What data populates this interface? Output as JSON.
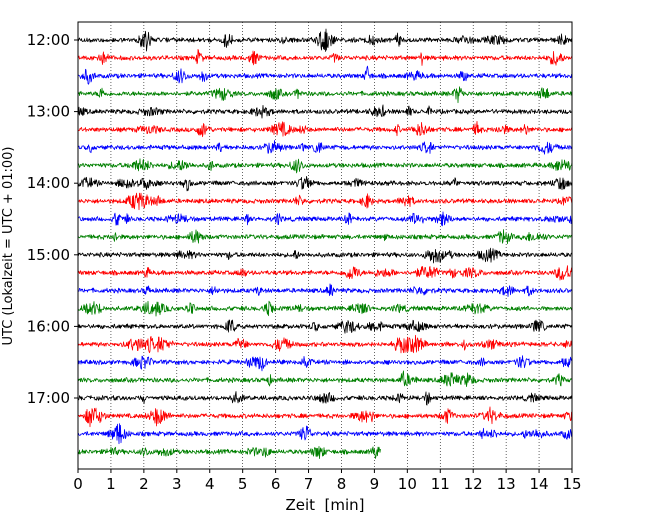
{
  "chart_data": {
    "type": "line",
    "title": "",
    "xlabel": "Zeit  [min]",
    "ylabel": "UTC (Lokalzeit = UTC + 01:00)",
    "xlim": [
      0,
      15
    ],
    "xticks": [
      0,
      1,
      2,
      3,
      4,
      5,
      6,
      7,
      8,
      9,
      10,
      11,
      12,
      13,
      14,
      15
    ],
    "yticks": [
      {
        "label": "12:00",
        "trace": 0
      },
      {
        "label": "13:00",
        "trace": 4
      },
      {
        "label": "14:00",
        "trace": 8
      },
      {
        "label": "15:00",
        "trace": 12
      },
      {
        "label": "16:00",
        "trace": 16
      },
      {
        "label": "17:00",
        "trace": 20
      }
    ],
    "grid": "vertical dotted at each minute",
    "colors": [
      "#000000",
      "#ff0000",
      "#0000ff",
      "#008000"
    ],
    "series": [
      {
        "start": "12:00",
        "color": "#000000",
        "end_min": 15
      },
      {
        "start": "12:15",
        "color": "#ff0000",
        "end_min": 15
      },
      {
        "start": "12:30",
        "color": "#0000ff",
        "end_min": 15
      },
      {
        "start": "12:45",
        "color": "#008000",
        "end_min": 15
      },
      {
        "start": "13:00",
        "color": "#000000",
        "end_min": 15
      },
      {
        "start": "13:15",
        "color": "#ff0000",
        "end_min": 15
      },
      {
        "start": "13:30",
        "color": "#0000ff",
        "end_min": 15
      },
      {
        "start": "13:45",
        "color": "#008000",
        "end_min": 15
      },
      {
        "start": "14:00",
        "color": "#000000",
        "end_min": 15
      },
      {
        "start": "14:15",
        "color": "#ff0000",
        "end_min": 15
      },
      {
        "start": "14:30",
        "color": "#0000ff",
        "end_min": 15
      },
      {
        "start": "14:45",
        "color": "#008000",
        "end_min": 15
      },
      {
        "start": "15:00",
        "color": "#000000",
        "end_min": 15
      },
      {
        "start": "15:15",
        "color": "#ff0000",
        "end_min": 15
      },
      {
        "start": "15:30",
        "color": "#0000ff",
        "end_min": 15
      },
      {
        "start": "15:45",
        "color": "#008000",
        "end_min": 15
      },
      {
        "start": "16:00",
        "color": "#000000",
        "end_min": 15
      },
      {
        "start": "16:15",
        "color": "#ff0000",
        "end_min": 15
      },
      {
        "start": "16:30",
        "color": "#0000ff",
        "end_min": 15
      },
      {
        "start": "16:45",
        "color": "#008000",
        "end_min": 15
      },
      {
        "start": "17:00",
        "color": "#000000",
        "end_min": 15
      },
      {
        "start": "17:15",
        "color": "#ff0000",
        "end_min": 15
      },
      {
        "start": "17:30",
        "color": "#0000ff",
        "end_min": 15
      },
      {
        "start": "17:45",
        "color": "#008000",
        "end_min": 9.2
      }
    ]
  }
}
